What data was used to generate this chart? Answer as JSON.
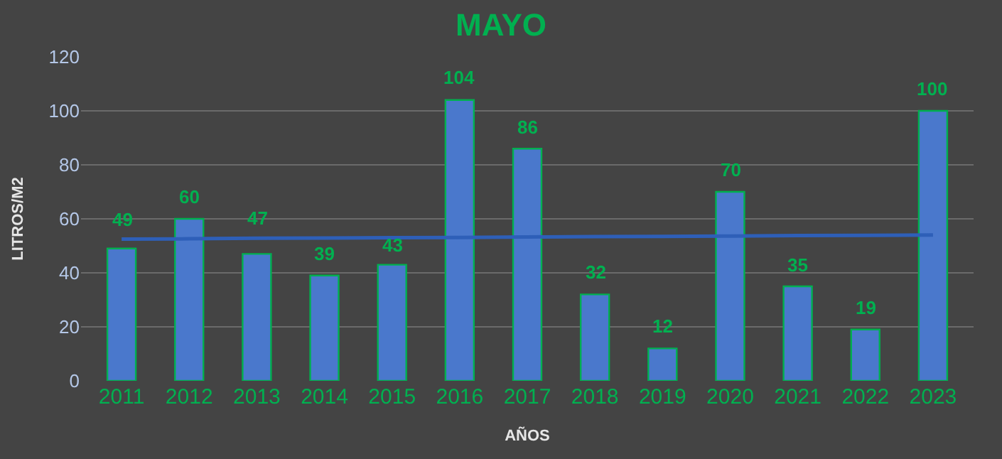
{
  "chart_data": {
    "type": "bar",
    "title": "MAYO",
    "xlabel": "AÑOS",
    "ylabel": "LITROS/M2",
    "categories": [
      "2011",
      "2012",
      "2013",
      "2014",
      "2015",
      "2016",
      "2017",
      "2018",
      "2019",
      "2020",
      "2021",
      "2022",
      "2023"
    ],
    "series": [
      {
        "color": "#4a78cc",
        "values": [
          49,
          60,
          47,
          39,
          43,
          104,
          86,
          32,
          12,
          70,
          35,
          19,
          100
        ],
        "value_labels": [
          "49",
          "60",
          "47",
          "39",
          "43",
          "104",
          "86",
          "32",
          "12",
          "70",
          "35",
          "19",
          "100"
        ]
      },
      {
        "type": "line",
        "color": "#2e5fb8",
        "values": [
          52.5,
          52.6,
          52.8,
          52.9,
          53,
          53.1,
          53.3,
          53.4,
          53.5,
          53.6,
          53.8,
          53.9,
          54
        ]
      }
    ],
    "ylim": [
      0,
      120
    ],
    "yticks": [
      0,
      20,
      40,
      60,
      80,
      100,
      120
    ],
    "grid": "y"
  }
}
